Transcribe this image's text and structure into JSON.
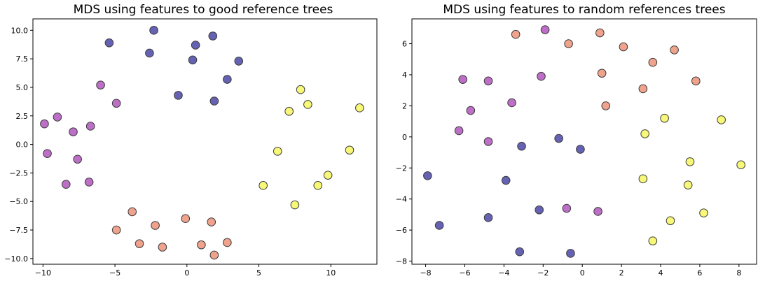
{
  "chart_data": [
    {
      "type": "scatter",
      "title": "MDS using features to good reference trees",
      "xlim": [
        -10.7,
        13.2
      ],
      "ylim": [
        -10.5,
        11.0
      ],
      "xticks": [
        -10,
        -5,
        0,
        5,
        10
      ],
      "yticks": [
        10.0,
        7.5,
        5.0,
        2.5,
        0.0,
        -2.5,
        -5.0,
        -7.5,
        -10.0
      ],
      "xtick_labels": [
        "−10",
        "−5",
        "0",
        "5",
        "10"
      ],
      "ytick_labels": [
        "10.0",
        "7.5",
        "5.0",
        "2.5",
        "0.0",
        "−2.5",
        "−5.0",
        "−7.5",
        "−10.0"
      ],
      "grid": false,
      "series": [
        {
          "color": "#5e5aaf",
          "x": [
            -5.4,
            -2.3,
            -2.6,
            0.6,
            1.8,
            0.4,
            3.6,
            2.8,
            -0.6,
            1.9
          ],
          "y": [
            8.9,
            10.0,
            8.0,
            8.7,
            9.5,
            7.4,
            7.3,
            5.7,
            4.3,
            3.8
          ]
        },
        {
          "color": "#b966c3",
          "x": [
            -6.0,
            -4.9,
            -9.0,
            -9.9,
            -7.9,
            -6.7,
            -9.7,
            -7.6,
            -8.4,
            -6.8
          ],
          "y": [
            5.2,
            3.6,
            2.4,
            1.8,
            1.1,
            1.6,
            -0.8,
            -1.3,
            -3.5,
            -3.3
          ]
        },
        {
          "color": "#f7f771",
          "x": [
            7.9,
            8.4,
            7.1,
            12.0,
            6.3,
            11.3,
            9.8,
            9.1,
            5.3,
            7.5
          ],
          "y": [
            4.8,
            3.5,
            2.9,
            3.2,
            -0.6,
            -0.5,
            -2.7,
            -3.6,
            -3.6,
            -5.3
          ]
        },
        {
          "color": "#ee9d86",
          "x": [
            -3.8,
            -4.9,
            -3.3,
            -2.2,
            -1.7,
            -0.1,
            1.0,
            1.7,
            1.9,
            2.8
          ],
          "y": [
            -5.9,
            -7.5,
            -8.7,
            -7.1,
            -9.0,
            -6.5,
            -8.8,
            -6.8,
            -9.7,
            -8.6
          ]
        }
      ]
    },
    {
      "type": "scatter",
      "title": "MDS using features to random references trees",
      "xlim": [
        -8.7,
        8.9
      ],
      "ylim": [
        -8.2,
        7.6
      ],
      "xticks": [
        -8,
        -6,
        -4,
        -2,
        0,
        2,
        4,
        6,
        8
      ],
      "yticks": [
        6,
        4,
        2,
        0,
        -2,
        -4,
        -6,
        -8
      ],
      "xtick_labels": [
        "−8",
        "−6",
        "−4",
        "−2",
        "0",
        "2",
        "4",
        "6",
        "8"
      ],
      "ytick_labels": [
        "6",
        "4",
        "2",
        "0",
        "−2",
        "−4",
        "−6",
        "−8"
      ],
      "grid": false,
      "series": [
        {
          "color": "#ee9d86",
          "x": [
            -3.4,
            -0.7,
            0.9,
            2.1,
            3.6,
            4.7,
            1.0,
            3.1,
            5.8,
            1.2
          ],
          "y": [
            6.6,
            6.0,
            6.7,
            5.8,
            4.8,
            5.6,
            4.1,
            3.1,
            3.6,
            2.0
          ]
        },
        {
          "color": "#b966c3",
          "x": [
            -1.9,
            -6.1,
            -4.8,
            -2.1,
            -3.6,
            -5.7,
            -6.3,
            -4.8,
            -0.8,
            0.8
          ],
          "y": [
            6.9,
            3.7,
            3.6,
            3.9,
            2.2,
            1.7,
            0.4,
            -0.3,
            -4.6,
            -4.8
          ]
        },
        {
          "color": "#5e5aaf",
          "x": [
            -3.1,
            -1.2,
            -0.1,
            -7.9,
            -3.9,
            -7.3,
            -4.8,
            -2.2,
            -3.2,
            -0.6
          ],
          "y": [
            -0.6,
            -0.1,
            -0.8,
            -2.5,
            -2.8,
            -5.7,
            -5.2,
            -4.7,
            -7.4,
            -7.5
          ]
        },
        {
          "color": "#f7f771",
          "x": [
            4.2,
            3.2,
            7.1,
            5.5,
            8.1,
            3.1,
            5.4,
            6.2,
            4.5,
            3.6
          ],
          "y": [
            1.2,
            0.2,
            1.1,
            -1.6,
            -1.8,
            -2.7,
            -3.1,
            -4.9,
            -5.4,
            -6.7
          ]
        }
      ]
    }
  ]
}
